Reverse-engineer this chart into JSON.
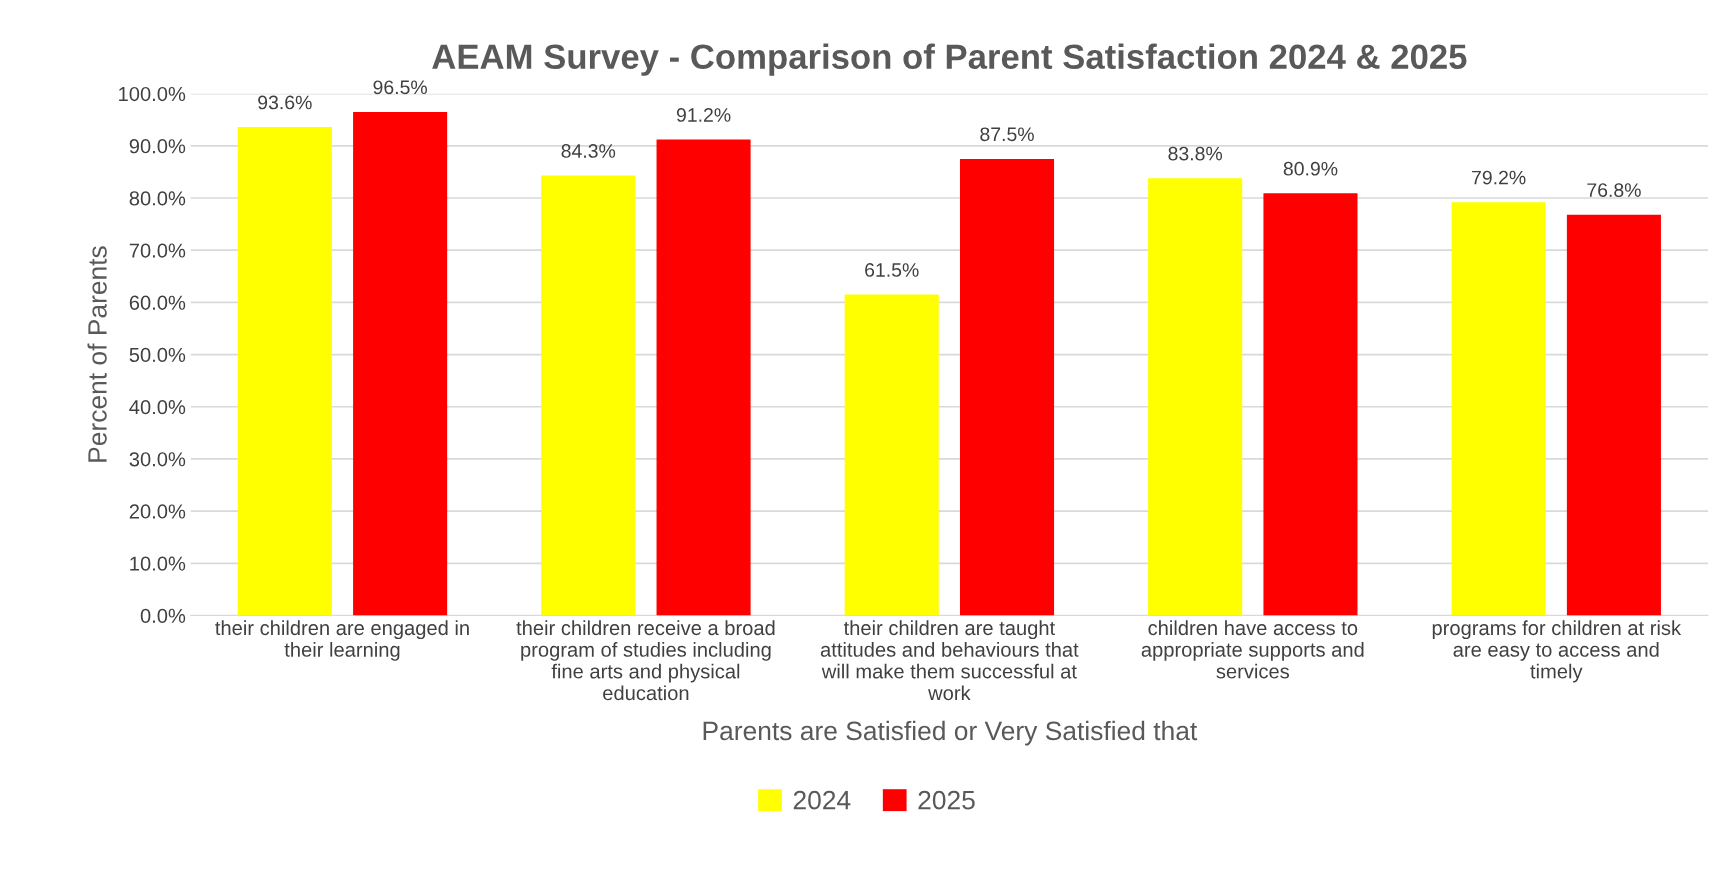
{
  "chart_data": {
    "type": "bar",
    "title": "AEAM Survey - Comparison of Parent Satisfaction 2024 & 2025",
    "xlabel": "Parents are Satisfied or Very Satisfied that",
    "ylabel": "Percent of Parents",
    "categories": [
      "their children are engaged in\ntheir learning",
      "their children receive a broad\nprogram of studies including\nfine arts and physical\neducation",
      "their children are taught\nattitudes and behaviours that\nwill make them successful at\nwork",
      "children have access to\nappropriate supports and\nservices",
      "programs for children at risk\nare easy to access and\ntimely"
    ],
    "series": [
      {
        "name": "2024",
        "color": "#ffff00",
        "values": [
          93.6,
          84.3,
          61.5,
          83.8,
          79.2
        ],
        "value_labels": [
          "93.6%",
          "84.3%",
          "61.5%",
          "83.8%",
          "79.2%"
        ]
      },
      {
        "name": "2025",
        "color": "#ff0000",
        "values": [
          96.5,
          91.2,
          87.5,
          80.9,
          76.8
        ],
        "value_labels": [
          "96.5%",
          "91.2%",
          "87.5%",
          "80.9%",
          "76.8%"
        ]
      }
    ],
    "ylim": [
      0,
      100
    ],
    "yticks": [
      {
        "value": 0,
        "label": "0.0%"
      },
      {
        "value": 10,
        "label": "10.0%"
      },
      {
        "value": 20,
        "label": "20.0%"
      },
      {
        "value": 30,
        "label": "30.0%"
      },
      {
        "value": 40,
        "label": "40.0%"
      },
      {
        "value": 50,
        "label": "50.0%"
      },
      {
        "value": 60,
        "label": "60.0%"
      },
      {
        "value": 70,
        "label": "70.0%"
      },
      {
        "value": 80,
        "label": "80.0%"
      },
      {
        "value": 90,
        "label": "90.0%"
      },
      {
        "value": 100,
        "label": "100.0%"
      }
    ],
    "grid": "y",
    "legend": "bottom"
  }
}
